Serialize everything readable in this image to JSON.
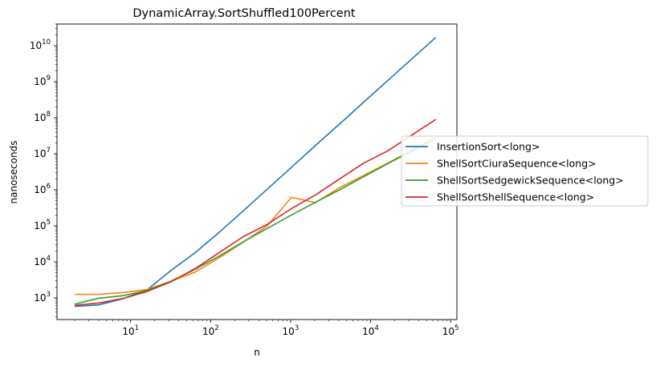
{
  "chart_data": {
    "type": "line",
    "title": "DynamicArray.SortShuffled100Percent",
    "xlabel": "n",
    "ylabel": "nanoseconds",
    "xscale": "log",
    "yscale": "log",
    "xlim": [
      1.2,
      120000
    ],
    "ylim": [
      250,
      40000000000
    ],
    "legend_position": "center-right",
    "x": [
      2,
      4,
      8,
      16,
      32,
      64,
      128,
      256,
      512,
      1024,
      2048,
      4096,
      8192,
      16384,
      32768,
      65536
    ],
    "series": [
      {
        "name": "InsertionSort<long>",
        "color": "#1f77b4",
        "values": [
          580,
          640,
          950,
          1650,
          5800,
          18000,
          66000,
          260000,
          1050000,
          4200000,
          17000000,
          67000000,
          270000000,
          1080000000,
          4300000000,
          17000000000
        ]
      },
      {
        "name": "ShellSortCiuraSequence<long>",
        "color": "#ff7f0e",
        "values": [
          1250,
          1260,
          1400,
          1700,
          2900,
          5200,
          13000,
          35000,
          100000,
          620000,
          440000,
          1150000,
          2500000,
          5500000,
          12500000,
          28000000
        ]
      },
      {
        "name": "ShellSortSedgewickSequence<long>",
        "color": "#2ca02c",
        "values": [
          670,
          980,
          1150,
          1600,
          2900,
          6200,
          14500,
          36000,
          85000,
          200000,
          450000,
          1000000,
          2300000,
          5300000,
          12000000,
          27000000
        ]
      },
      {
        "name": "ShellSortShellSequence<long>",
        "color": "#d62728",
        "values": [
          620,
          720,
          960,
          1500,
          2800,
          6500,
          18000,
          50000,
          110000,
          300000,
          720000,
          2000000,
          5500000,
          12000000,
          33000000,
          90000000
        ]
      }
    ],
    "x_ticks": [
      {
        "base": "10",
        "exp": "1",
        "value": 10
      },
      {
        "base": "10",
        "exp": "2",
        "value": 100
      },
      {
        "base": "10",
        "exp": "3",
        "value": 1000
      },
      {
        "base": "10",
        "exp": "4",
        "value": 10000
      },
      {
        "base": "10",
        "exp": "5",
        "value": 100000
      }
    ],
    "y_ticks": [
      {
        "base": "10",
        "exp": "3",
        "value": 1000
      },
      {
        "base": "10",
        "exp": "4",
        "value": 10000
      },
      {
        "base": "10",
        "exp": "5",
        "value": 100000
      },
      {
        "base": "10",
        "exp": "6",
        "value": 1000000
      },
      {
        "base": "10",
        "exp": "7",
        "value": 10000000
      },
      {
        "base": "10",
        "exp": "8",
        "value": 100000000
      },
      {
        "base": "10",
        "exp": "9",
        "value": 1000000000
      },
      {
        "base": "10",
        "exp": "10",
        "value": 10000000000
      }
    ]
  }
}
